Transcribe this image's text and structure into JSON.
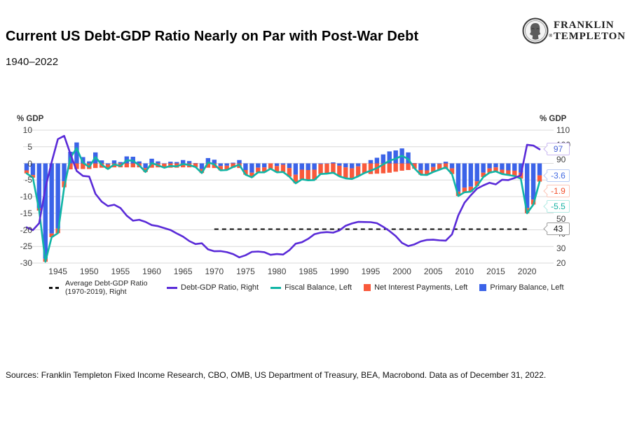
{
  "header": {
    "brand_line1": "FRANKLIN",
    "brand_line2": "TEMPLETON",
    "registered_mark": "®"
  },
  "footer": {
    "sources": "Sources: Franklin Templeton Fixed Income Research, CBO, OMB, US Department of Treasury, BEA,  Macrobond. Data as of December 31, 2022."
  },
  "chart_data": {
    "type": "combo_stacked_bar_line",
    "title": "Current US Debt-GDP Ratio Nearly on Par with Post-War Debt",
    "subtitle": "1940–2022",
    "grid": "horizontal",
    "legend_position": "bottom",
    "left_axis": {
      "label": "% GDP",
      "range": [
        -30,
        10
      ],
      "ticks": [
        10,
        5,
        0,
        -5,
        -10,
        -15,
        -20,
        -25,
        -30
      ]
    },
    "right_axis": {
      "label": "% GDP",
      "range": [
        20,
        110
      ],
      "ticks": [
        110,
        100,
        90,
        80,
        70,
        60,
        50,
        40,
        30,
        20
      ]
    },
    "x_axis": {
      "range": [
        1940,
        2022
      ],
      "ticks": [
        1945,
        1950,
        1955,
        1960,
        1965,
        1970,
        1975,
        1980,
        1985,
        1990,
        1995,
        2000,
        2005,
        2010,
        2015,
        2020
      ]
    },
    "years": [
      1940,
      1941,
      1942,
      1943,
      1944,
      1945,
      1946,
      1947,
      1948,
      1949,
      1950,
      1951,
      1952,
      1953,
      1954,
      1955,
      1956,
      1957,
      1958,
      1959,
      1960,
      1961,
      1962,
      1963,
      1964,
      1965,
      1966,
      1967,
      1968,
      1969,
      1970,
      1971,
      1972,
      1973,
      1974,
      1975,
      1976,
      1977,
      1978,
      1979,
      1980,
      1981,
      1982,
      1983,
      1984,
      1985,
      1986,
      1987,
      1988,
      1989,
      1990,
      1991,
      1992,
      1993,
      1994,
      1995,
      1996,
      1997,
      1998,
      1999,
      2000,
      2001,
      2002,
      2003,
      2004,
      2005,
      2006,
      2007,
      2008,
      2009,
      2010,
      2011,
      2012,
      2013,
      2014,
      2015,
      2016,
      2017,
      2018,
      2019,
      2020,
      2021,
      2022
    ],
    "series": {
      "primary_balance": {
        "label": "Primary Balance, Left",
        "type": "bar",
        "axis": "left",
        "color": "#3B63E8",
        "values": [
          -2.1,
          -3.5,
          -13.5,
          -28.7,
          -21.1,
          -19.6,
          -5.4,
          3.5,
          6.3,
          1.9,
          0.6,
          3.3,
          0.9,
          -0.3,
          0.9,
          0.4,
          2.1,
          2.0,
          0.6,
          -1.4,
          1.4,
          0.6,
          -0.1,
          0.5,
          0.4,
          1.0,
          0.7,
          0.1,
          -1.7,
          1.6,
          1.1,
          -0.8,
          -0.7,
          0.2,
          1.0,
          -2.0,
          -2.8,
          -1.3,
          -1.2,
          0.0,
          -0.8,
          -0.4,
          -1.4,
          -3.4,
          -1.9,
          -2.0,
          -1.9,
          -0.2,
          -0.1,
          0.3,
          -0.7,
          -1.2,
          -1.5,
          -0.9,
          0.0,
          1.0,
          1.7,
          2.7,
          3.6,
          3.9,
          4.5,
          3.3,
          0.1,
          -2.0,
          -2.1,
          -1.1,
          -0.2,
          0.5,
          -1.5,
          -8.5,
          -7.3,
          -7.0,
          -5.4,
          -2.8,
          -1.5,
          -1.2,
          -1.9,
          -2.1,
          -2.2,
          -2.8,
          -13.4,
          -10.9,
          -3.6
        ]
      },
      "net_interest": {
        "label": "Net Interest Payments, Left",
        "type": "bar",
        "axis": "left",
        "color": "#F9593B",
        "values": [
          -0.9,
          -0.8,
          -0.7,
          -0.9,
          -1.1,
          -1.4,
          -1.8,
          -1.8,
          -1.7,
          -1.7,
          -1.7,
          -1.4,
          -1.3,
          -1.4,
          -1.2,
          -1.2,
          -1.2,
          -1.2,
          -1.2,
          -1.2,
          -1.3,
          -1.2,
          -1.2,
          -1.3,
          -1.3,
          -1.2,
          -1.2,
          -1.2,
          -1.2,
          -1.3,
          -1.4,
          -1.3,
          -1.3,
          -1.3,
          -1.4,
          -1.4,
          -1.4,
          -1.4,
          -1.5,
          -1.6,
          -1.9,
          -2.2,
          -2.6,
          -2.6,
          -2.9,
          -3.1,
          -3.1,
          -3.0,
          -3.0,
          -3.1,
          -3.2,
          -3.3,
          -3.2,
          -3.0,
          -2.9,
          -3.2,
          -3.1,
          -3.0,
          -2.8,
          -2.5,
          -2.2,
          -2.0,
          -1.6,
          -1.4,
          -1.4,
          -1.5,
          -1.7,
          -1.7,
          -1.7,
          -1.3,
          -1.4,
          -1.5,
          -1.4,
          -1.3,
          -1.3,
          -1.2,
          -1.3,
          -1.4,
          -1.6,
          -1.8,
          -1.6,
          -1.5,
          -1.9
        ]
      },
      "fiscal_balance": {
        "label": "Fiscal Balance, Left",
        "type": "line",
        "axis": "left",
        "color": "#10B5A5",
        "values": [
          -3.0,
          -4.3,
          -14.2,
          -29.6,
          -22.2,
          -21.0,
          -7.2,
          1.7,
          4.6,
          0.2,
          -1.1,
          1.9,
          -0.4,
          -1.7,
          -0.3,
          -0.8,
          0.9,
          0.8,
          -0.6,
          -2.6,
          0.1,
          -0.6,
          -1.3,
          -0.8,
          -0.9,
          -0.2,
          -0.5,
          -1.1,
          -2.9,
          0.3,
          -0.3,
          -2.1,
          -2.0,
          -1.1,
          -0.4,
          -3.4,
          -4.2,
          -2.7,
          -2.7,
          -1.6,
          -2.7,
          -2.6,
          -4.0,
          -6.0,
          -4.8,
          -5.1,
          -5.0,
          -3.2,
          -3.1,
          -2.8,
          -3.9,
          -4.5,
          -4.7,
          -3.9,
          -2.9,
          -2.2,
          -1.4,
          -0.3,
          0.8,
          1.4,
          2.3,
          1.3,
          -1.5,
          -3.4,
          -3.5,
          -2.6,
          -1.9,
          -1.2,
          -3.2,
          -9.8,
          -8.7,
          -8.5,
          -6.8,
          -4.1,
          -2.8,
          -2.4,
          -3.2,
          -3.5,
          -3.8,
          -4.6,
          -15.0,
          -12.4,
          -5.5
        ]
      },
      "debt_gdp": {
        "label": "Debt-GDP Ratio, Right",
        "type": "line",
        "axis": "right",
        "color": "#5A2BD8",
        "values": [
          44.2,
          42.3,
          47.0,
          70.9,
          88.3,
          103.9,
          106.1,
          93.9,
          82.4,
          79.0,
          78.6,
          66.9,
          61.6,
          58.6,
          59.5,
          57.3,
          52.1,
          48.7,
          49.3,
          47.9,
          45.7,
          45.0,
          43.7,
          42.4,
          40.1,
          37.9,
          34.9,
          32.9,
          33.4,
          29.3,
          28.0,
          28.1,
          27.4,
          26.1,
          23.9,
          25.3,
          27.6,
          27.8,
          27.4,
          25.6,
          26.1,
          25.8,
          28.7,
          33.1,
          34.1,
          36.4,
          39.5,
          40.6,
          41.0,
          40.6,
          42.1,
          45.3,
          46.8,
          47.9,
          47.8,
          47.7,
          47.0,
          44.6,
          41.7,
          38.3,
          33.7,
          31.5,
          32.7,
          34.7,
          35.7,
          35.8,
          35.4,
          35.2,
          39.4,
          52.3,
          60.9,
          65.9,
          70.4,
          72.6,
          74.4,
          73.3,
          76.4,
          76.2,
          77.6,
          79.4,
          100.1,
          99.6,
          97.0
        ]
      },
      "average_debt_gdp": {
        "label": "Average Debt-GDP Ratio (1970-2019), Right",
        "type": "dashed-line",
        "axis": "right",
        "color": "#111111",
        "value": 43,
        "span_years": [
          1970,
          2020.5
        ]
      }
    },
    "legend_order": [
      "average_debt_gdp",
      "debt_gdp",
      "fiscal_balance",
      "net_interest",
      "primary_balance"
    ],
    "callouts": [
      {
        "label": "97",
        "axis": "right",
        "anchor_value": 97,
        "text_color": "#4A62D8",
        "border_color": "#C9B8F0"
      },
      {
        "label": "-3.6",
        "axis": "left",
        "anchor_value": -3.6,
        "text_color": "#4169E1",
        "border_color": "#B9CCF5"
      },
      {
        "label": "-1.9",
        "axis": "left",
        "anchor_value": -3.6,
        "text_color": "#F4502C",
        "border_color": "#FBC6B8"
      },
      {
        "label": "-5.5",
        "axis": "left",
        "anchor_value": -3.6,
        "text_color": "#12B2A2",
        "border_color": "#B2EBE4"
      },
      {
        "label": "43",
        "axis": "right",
        "anchor_value": 43,
        "text_color": "#1A1A1A",
        "border_color": "#9E9E9E"
      }
    ]
  }
}
